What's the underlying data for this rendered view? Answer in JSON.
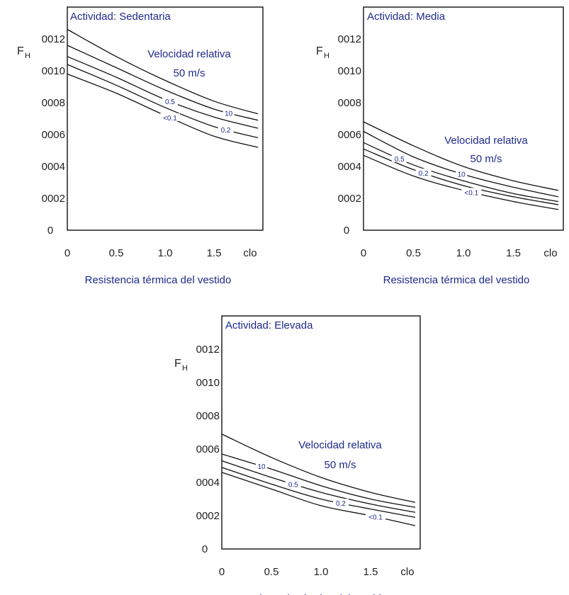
{
  "chart_data": [
    {
      "type": "line",
      "title": "Actividad: Sedentaria",
      "annotation_line1": "Velocidad relativa",
      "annotation_line2": "50 m/s",
      "xlabel": "Resistencia térmica del vestido",
      "ylabel_main": "F",
      "ylabel_sub": "H",
      "x_tick_labels": [
        "0",
        "0.5",
        "1.0",
        "1.5",
        "clo"
      ],
      "y_tick_labels": [
        "0",
        "0002",
        "0004",
        "0006",
        "0008",
        "0010",
        "0012"
      ],
      "xlim": [
        0,
        2.0
      ],
      "ylim": [
        0,
        14
      ],
      "x": [
        0,
        0.5,
        1.0,
        1.5,
        1.95
      ],
      "series": [
        {
          "name": "50",
          "values": [
            12.6,
            10.9,
            9.4,
            8.1,
            7.3
          ]
        },
        {
          "name": "10",
          "values": [
            11.6,
            10.2,
            8.8,
            7.6,
            6.9
          ]
        },
        {
          "name": "0.5",
          "values": [
            10.9,
            9.6,
            8.2,
            7.1,
            6.4
          ]
        },
        {
          "name": "0.2",
          "values": [
            10.4,
            9.1,
            7.7,
            6.5,
            5.8
          ]
        },
        {
          "name": "<0.1",
          "values": [
            9.8,
            8.6,
            7.2,
            5.9,
            5.2
          ]
        }
      ],
      "curve_labels": [
        {
          "text": "0.5",
          "series": "0.5",
          "x": 1.05
        },
        {
          "text": "10",
          "series": "10",
          "x": 1.65
        },
        {
          "text": "<0.1",
          "series": "<0.1",
          "x": 1.05
        },
        {
          "text": "0.2",
          "series": "0.2",
          "x": 1.62
        }
      ]
    },
    {
      "type": "line",
      "title": "Actividad: Media",
      "annotation_line1": "Velocidad relativa",
      "annotation_line2": "50 m/s",
      "xlabel": "Resistencia térmica del vestido",
      "ylabel_main": "F",
      "ylabel_sub": "H",
      "x_tick_labels": [
        "0",
        "0.5",
        "1.0",
        "1.5",
        "clo"
      ],
      "y_tick_labels": [
        "0",
        "0002",
        "0004",
        "0006",
        "0008",
        "0010",
        "0012"
      ],
      "xlim": [
        0,
        2.0
      ],
      "ylim": [
        0,
        14
      ],
      "x": [
        0,
        0.5,
        1.0,
        1.5,
        1.95
      ],
      "series": [
        {
          "name": "50",
          "values": [
            6.8,
            5.3,
            4.0,
            3.1,
            2.5
          ]
        },
        {
          "name": "10",
          "values": [
            6.2,
            4.6,
            3.5,
            2.7,
            2.1
          ]
        },
        {
          "name": "0.5",
          "values": [
            5.5,
            4.1,
            3.1,
            2.3,
            1.8
          ]
        },
        {
          "name": "0.2",
          "values": [
            5.1,
            3.8,
            2.8,
            2.1,
            1.6
          ]
        },
        {
          "name": "<0.1",
          "values": [
            4.7,
            3.4,
            2.5,
            1.8,
            1.3
          ]
        }
      ],
      "curve_labels": [
        {
          "text": "0.5",
          "series": "0.5",
          "x": 0.36
        },
        {
          "text": "0.2",
          "series": "0.2",
          "x": 0.6
        },
        {
          "text": "10",
          "series": "10",
          "x": 0.98
        },
        {
          "text": "<0.1",
          "series": "<0.1",
          "x": 1.08
        }
      ]
    },
    {
      "type": "line",
      "title": "Actividad: Elevada",
      "annotation_line1": "Velocidad relativa",
      "annotation_line2": "50 m/s",
      "xlabel": "Resistencia térmica del vestido",
      "ylabel_main": "F",
      "ylabel_sub": "H",
      "x_tick_labels": [
        "0",
        "0.5",
        "1.0",
        "1.5",
        "clo"
      ],
      "y_tick_labels": [
        "0",
        "0002",
        "0004",
        "0006",
        "0008",
        "0010",
        "0012"
      ],
      "xlim": [
        0,
        2.0
      ],
      "ylim": [
        0,
        14
      ],
      "x": [
        0,
        0.5,
        1.0,
        1.5,
        1.95
      ],
      "series": [
        {
          "name": "50",
          "values": [
            6.9,
            5.5,
            4.3,
            3.4,
            2.8
          ]
        },
        {
          "name": "10",
          "values": [
            5.7,
            4.8,
            3.8,
            3.0,
            2.5
          ]
        },
        {
          "name": "0.5",
          "values": [
            5.3,
            4.3,
            3.4,
            2.7,
            2.2
          ]
        },
        {
          "name": "0.2",
          "values": [
            4.9,
            3.9,
            3.0,
            2.4,
            1.9
          ]
        },
        {
          "name": "<0.1",
          "values": [
            4.6,
            3.6,
            2.6,
            2.0,
            1.4
          ]
        }
      ],
      "curve_labels": [
        {
          "text": "10",
          "series": "10",
          "x": 0.4
        },
        {
          "text": "0.5",
          "series": "0.5",
          "x": 0.72
        },
        {
          "text": "0.2",
          "series": "0.2",
          "x": 1.2
        },
        {
          "text": "<0.1",
          "series": "<0.1",
          "x": 1.55
        }
      ]
    }
  ]
}
